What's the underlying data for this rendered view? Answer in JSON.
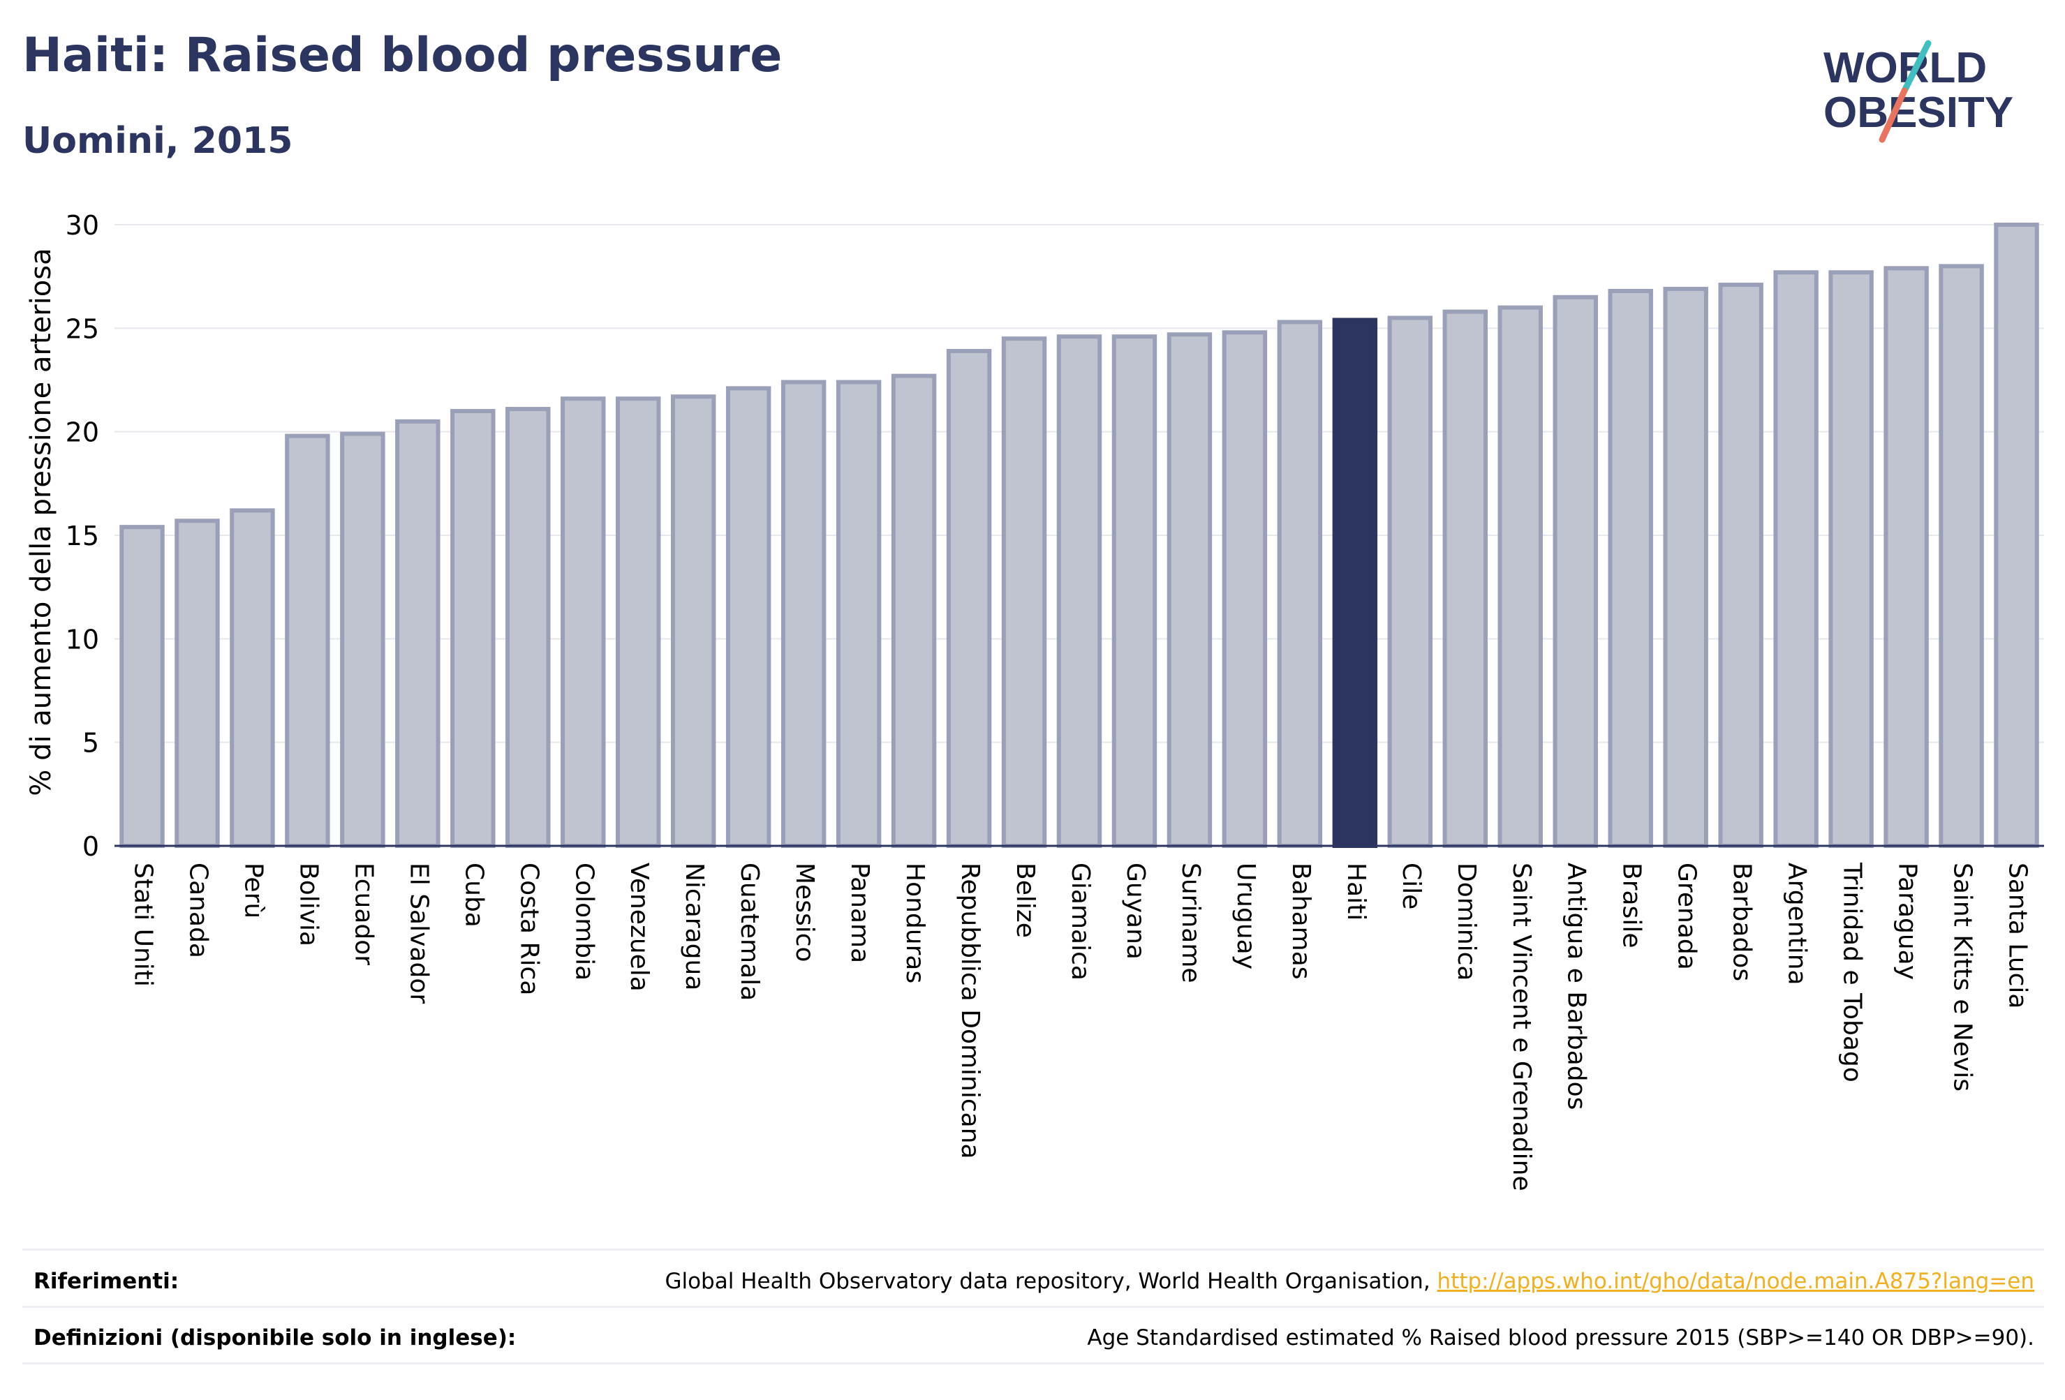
{
  "header": {
    "title": "Haiti: Raised blood pressure",
    "subtitle": "Uomini, 2015"
  },
  "logo": {
    "line1": "WORLD",
    "line2": "OBESITY",
    "slash_colors": [
      "#3fbfbf",
      "#e8735f"
    ]
  },
  "colors": {
    "bar_fill": "#c0c3d0",
    "bar_stroke": "#9aa0b8",
    "highlight": "#2b3560",
    "title": "#2b3560",
    "link": "#f2b01e"
  },
  "chart_data": {
    "type": "bar",
    "title": "Haiti: Raised blood pressure",
    "subtitle": "Uomini, 2015",
    "ylabel": "% di aumento della pressione arteriosa",
    "xlabel": "",
    "ylim": [
      0,
      30
    ],
    "yticks": [
      0,
      5,
      10,
      15,
      20,
      25,
      30
    ],
    "grid": true,
    "highlight": "Haiti",
    "categories": [
      "Stati Uniti",
      "Canada",
      "Perù",
      "Bolivia",
      "Ecuador",
      "El Salvador",
      "Cuba",
      "Costa Rica",
      "Colombia",
      "Venezuela",
      "Nicaragua",
      "Guatemala",
      "Messico",
      "Panama",
      "Honduras",
      "Repubblica Dominicana",
      "Belize",
      "Giamaica",
      "Guyana",
      "Suriname",
      "Uruguay",
      "Bahamas",
      "Haiti",
      "Cile",
      "Dominica",
      "Saint Vincent e Grenadine",
      "Antigua e Barbados",
      "Brasile",
      "Grenada",
      "Barbados",
      "Argentina",
      "Trinidad e Tobago",
      "Paraguay",
      "Saint Kitts e Nevis",
      "Santa Lucia"
    ],
    "values": [
      15.4,
      15.7,
      16.2,
      19.8,
      19.9,
      20.5,
      21.0,
      21.1,
      21.6,
      21.6,
      21.7,
      22.1,
      22.4,
      22.4,
      22.7,
      23.9,
      24.5,
      24.6,
      24.6,
      24.7,
      24.8,
      25.3,
      25.4,
      25.5,
      25.8,
      26.0,
      26.5,
      26.8,
      26.9,
      27.1,
      27.7,
      27.7,
      27.9,
      28.0,
      30.0
    ]
  },
  "footer": {
    "references_label": "Riferimenti:",
    "references_text": "Global Health Observatory data repository, World Health Organisation, ",
    "references_link": "http://apps.who.int/gho/data/node.main.A875?lang=en",
    "definitions_label": "Definizioni (disponibile solo in inglese):",
    "definitions_text": "Age Standardised estimated % Raised blood pressure 2015 (SBP>=140 OR DBP>=90)."
  }
}
